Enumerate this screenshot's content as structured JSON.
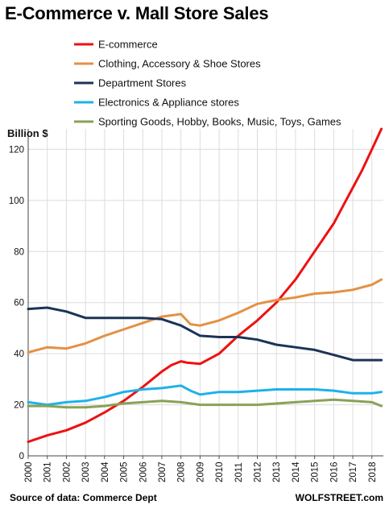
{
  "title": "E-Commerce v. Mall Store Sales",
  "source": "Source of data: Commerce Dept",
  "brand": "WOLFSTREET.com",
  "chart_data": {
    "type": "line",
    "ylabel": "Billion $",
    "xlabel": "",
    "ylim": [
      0,
      128
    ],
    "xlim": [
      2000,
      2018.6
    ],
    "yticks": [
      0,
      20,
      40,
      60,
      80,
      100,
      120
    ],
    "xticks": [
      "2000",
      "2001",
      "2002",
      "2003",
      "2004",
      "2005",
      "2006",
      "2007",
      "2008",
      "2009",
      "2010",
      "2011",
      "2012",
      "2013",
      "2014",
      "2015",
      "2016",
      "2017",
      "2018"
    ],
    "grid": true,
    "legend_position": "top",
    "series": [
      {
        "name": "E-commerce",
        "color": "#ee1111",
        "x": [
          2000,
          2001,
          2002,
          2003,
          2004,
          2005,
          2006,
          2007,
          2007.5,
          2008,
          2008.3,
          2009,
          2010,
          2011,
          2012,
          2013,
          2014,
          2015,
          2016,
          2016.5,
          2017,
          2017.5,
          2018,
          2018.5
        ],
        "y": [
          5.5,
          8,
          10,
          13,
          17,
          21.5,
          27,
          33,
          35.5,
          37,
          36.5,
          36,
          40,
          47,
          53,
          60,
          69,
          80,
          91,
          98,
          105,
          112,
          120,
          128
        ]
      },
      {
        "name": "Clothing, Accessory & Shoe Stores",
        "color": "#e39144",
        "x": [
          2000,
          2001,
          2002,
          2003,
          2004,
          2005,
          2006,
          2007,
          2008,
          2008.5,
          2009,
          2010,
          2011,
          2012,
          2013,
          2014,
          2015,
          2016,
          2017,
          2018,
          2018.5
        ],
        "y": [
          40.5,
          42.5,
          42,
          44,
          47,
          49.5,
          52,
          54.5,
          55.5,
          51.5,
          51,
          53,
          56,
          59.5,
          61,
          62,
          63.5,
          64,
          65,
          67,
          69
        ]
      },
      {
        "name": "Department Stores",
        "color": "#1c3358",
        "x": [
          2000,
          2001,
          2002,
          2003,
          2004,
          2005,
          2006,
          2007,
          2008,
          2009,
          2010,
          2011,
          2012,
          2013,
          2014,
          2015,
          2016,
          2017,
          2018,
          2018.5
        ],
        "y": [
          57.5,
          58,
          56.5,
          54,
          54,
          54,
          54,
          53.5,
          51,
          47,
          46.5,
          46.5,
          45.5,
          43.5,
          42.5,
          41.5,
          39.5,
          37.5,
          37.5,
          37.5
        ]
      },
      {
        "name": "Electronics & Appliance stores",
        "color": "#1eb1ea",
        "x": [
          2000,
          2001,
          2002,
          2003,
          2004,
          2005,
          2006,
          2007,
          2008,
          2008.5,
          2009,
          2010,
          2011,
          2012,
          2013,
          2014,
          2015,
          2016,
          2017,
          2018,
          2018.5
        ],
        "y": [
          21,
          20,
          21,
          21.5,
          23,
          25,
          26,
          26.5,
          27.5,
          25.5,
          24,
          25,
          25,
          25.5,
          26,
          26,
          26,
          25.5,
          24.5,
          24.5,
          25
        ]
      },
      {
        "name": "Sporting Goods, Hobby, Books, Music, Toys, Games",
        "color": "#8aa157",
        "x": [
          2000,
          2001,
          2002,
          2003,
          2004,
          2005,
          2006,
          2007,
          2008,
          2009,
          2010,
          2011,
          2012,
          2013,
          2014,
          2015,
          2016,
          2017,
          2018,
          2018.5
        ],
        "y": [
          19.5,
          19.5,
          19,
          19,
          19.5,
          20.5,
          21,
          21.5,
          21,
          20,
          20,
          20,
          20,
          20.5,
          21,
          21.5,
          22,
          21.5,
          21,
          19.5
        ]
      }
    ]
  }
}
